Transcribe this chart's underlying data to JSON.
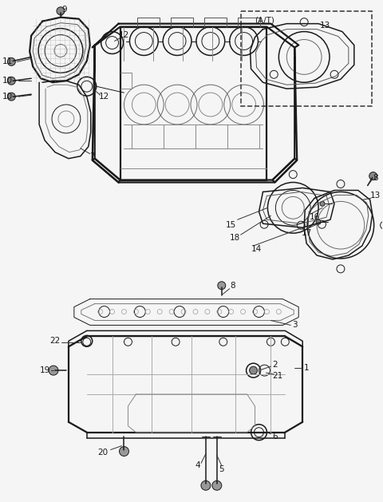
{
  "bg_color": "#f5f5f5",
  "line_color": "#1a1a1a",
  "label_color": "#1a1a1a",
  "fig_w": 4.8,
  "fig_h": 6.29,
  "dpi": 100
}
